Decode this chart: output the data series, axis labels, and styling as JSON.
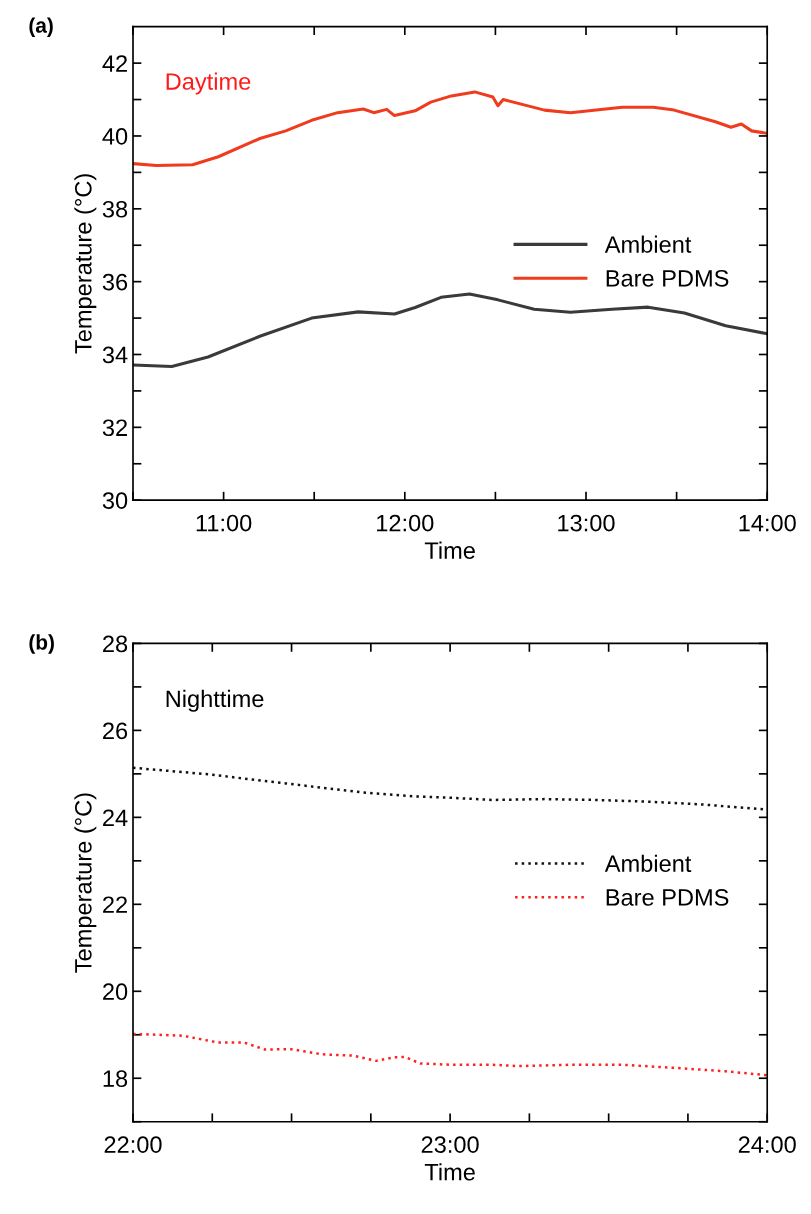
{
  "chart_data": [
    {
      "type": "line",
      "title": "(a)",
      "xlabel": "Time",
      "ylabel": "Temperature (°C)",
      "annotations": [
        "Daytime"
      ],
      "xlim": [
        10.5,
        14
      ],
      "xticks": [
        {
          "value": 10.5,
          "label": null
        },
        {
          "value": 11,
          "label": "11:00"
        },
        {
          "value": 11.5,
          "label": null
        },
        {
          "value": 12,
          "label": "12:00"
        },
        {
          "value": 12.5,
          "label": null
        },
        {
          "value": 13,
          "label": "13:00"
        },
        {
          "value": 13.5,
          "label": null
        },
        {
          "value": 14,
          "label": "14:00"
        }
      ],
      "ylim": [
        30,
        43
      ],
      "yticks": [
        30,
        {
          "value": 31,
          "label": null
        },
        32,
        {
          "value": 33,
          "label": null
        },
        34,
        {
          "value": 35,
          "label": null
        },
        36,
        {
          "value": 37,
          "label": null
        },
        38,
        {
          "value": 39,
          "label": null
        },
        40,
        {
          "value": 41,
          "label": null
        },
        42
      ],
      "legend": "center right",
      "line_style": "solid",
      "grid": false,
      "series": [
        {
          "name": "Ambient",
          "color": "#3a3a3a",
          "x": [
            10.5,
            10.714,
            10.914,
            11.2,
            11.486,
            11.743,
            11.943,
            12.057,
            12.2,
            12.357,
            12.514,
            12.714,
            12.914,
            13.143,
            13.343,
            13.543,
            13.771,
            14.0
          ],
          "values": [
            33.71,
            33.67,
            33.93,
            34.5,
            35.0,
            35.17,
            35.11,
            35.29,
            35.57,
            35.66,
            35.5,
            35.24,
            35.16,
            35.24,
            35.3,
            35.14,
            34.79,
            34.57
          ]
        },
        {
          "name": "Bare PDMS",
          "color": "#f03c1e",
          "x": [
            10.5,
            10.629,
            10.829,
            10.971,
            11.2,
            11.343,
            11.486,
            11.629,
            11.771,
            11.829,
            11.9,
            11.943,
            12.057,
            12.143,
            12.257,
            12.386,
            12.486,
            12.514,
            12.543,
            12.771,
            12.914,
            13.2,
            13.371,
            13.486,
            13.714,
            13.8,
            13.857,
            13.914,
            14.0
          ],
          "values": [
            39.24,
            39.19,
            39.21,
            39.43,
            39.93,
            40.14,
            40.43,
            40.64,
            40.74,
            40.64,
            40.73,
            40.56,
            40.69,
            40.93,
            41.1,
            41.21,
            41.07,
            40.83,
            41.0,
            40.71,
            40.64,
            40.79,
            40.79,
            40.71,
            40.39,
            40.24,
            40.33,
            40.14,
            40.07
          ]
        }
      ]
    },
    {
      "type": "line",
      "title": "(b)",
      "xlabel": "Time",
      "ylabel": "Temperature (°C)",
      "annotations": [
        "Nighttime"
      ],
      "xlim": [
        22,
        24
      ],
      "xticks": [
        {
          "value": 22,
          "label": "22:00"
        },
        {
          "value": 22.25,
          "label": null
        },
        {
          "value": 22.5,
          "label": null
        },
        {
          "value": 22.75,
          "label": null
        },
        {
          "value": 23,
          "label": "23:00"
        },
        {
          "value": 23.25,
          "label": null
        },
        {
          "value": 23.5,
          "label": null
        },
        {
          "value": 23.75,
          "label": null
        },
        {
          "value": 24,
          "label": "24:00"
        }
      ],
      "ylim": [
        17,
        28
      ],
      "yticks": [
        {
          "value": 17,
          "label": null
        },
        18,
        {
          "value": 19,
          "label": null
        },
        20,
        {
          "value": 21,
          "label": null
        },
        22,
        {
          "value": 23,
          "label": null
        },
        24,
        {
          "value": 25,
          "label": null
        },
        26,
        {
          "value": 27,
          "label": null
        },
        28
      ],
      "legend": "center right",
      "line_style": "dotted",
      "grid": false,
      "series": [
        {
          "name": "Ambient",
          "color": "#111111",
          "x": [
            22.0,
            22.237,
            22.482,
            22.727,
            22.89,
            23.004,
            23.135,
            23.298,
            23.461,
            23.624,
            23.788,
            24.0
          ],
          "values": [
            25.14,
            24.99,
            24.78,
            24.57,
            24.48,
            24.45,
            24.4,
            24.42,
            24.4,
            24.36,
            24.3,
            24.18
          ]
        },
        {
          "name": "Bare PDMS",
          "color": "#ff2020",
          "x": [
            22.0,
            22.155,
            22.269,
            22.351,
            22.416,
            22.498,
            22.596,
            22.694,
            22.767,
            22.824,
            22.857,
            22.906,
            23.004,
            23.135,
            23.216,
            23.38,
            23.543,
            23.706,
            23.869,
            24.0
          ],
          "values": [
            19.02,
            18.98,
            18.82,
            18.82,
            18.66,
            18.67,
            18.55,
            18.52,
            18.4,
            18.48,
            18.49,
            18.34,
            18.31,
            18.31,
            18.28,
            18.31,
            18.31,
            18.24,
            18.16,
            18.07
          ]
        }
      ]
    }
  ]
}
